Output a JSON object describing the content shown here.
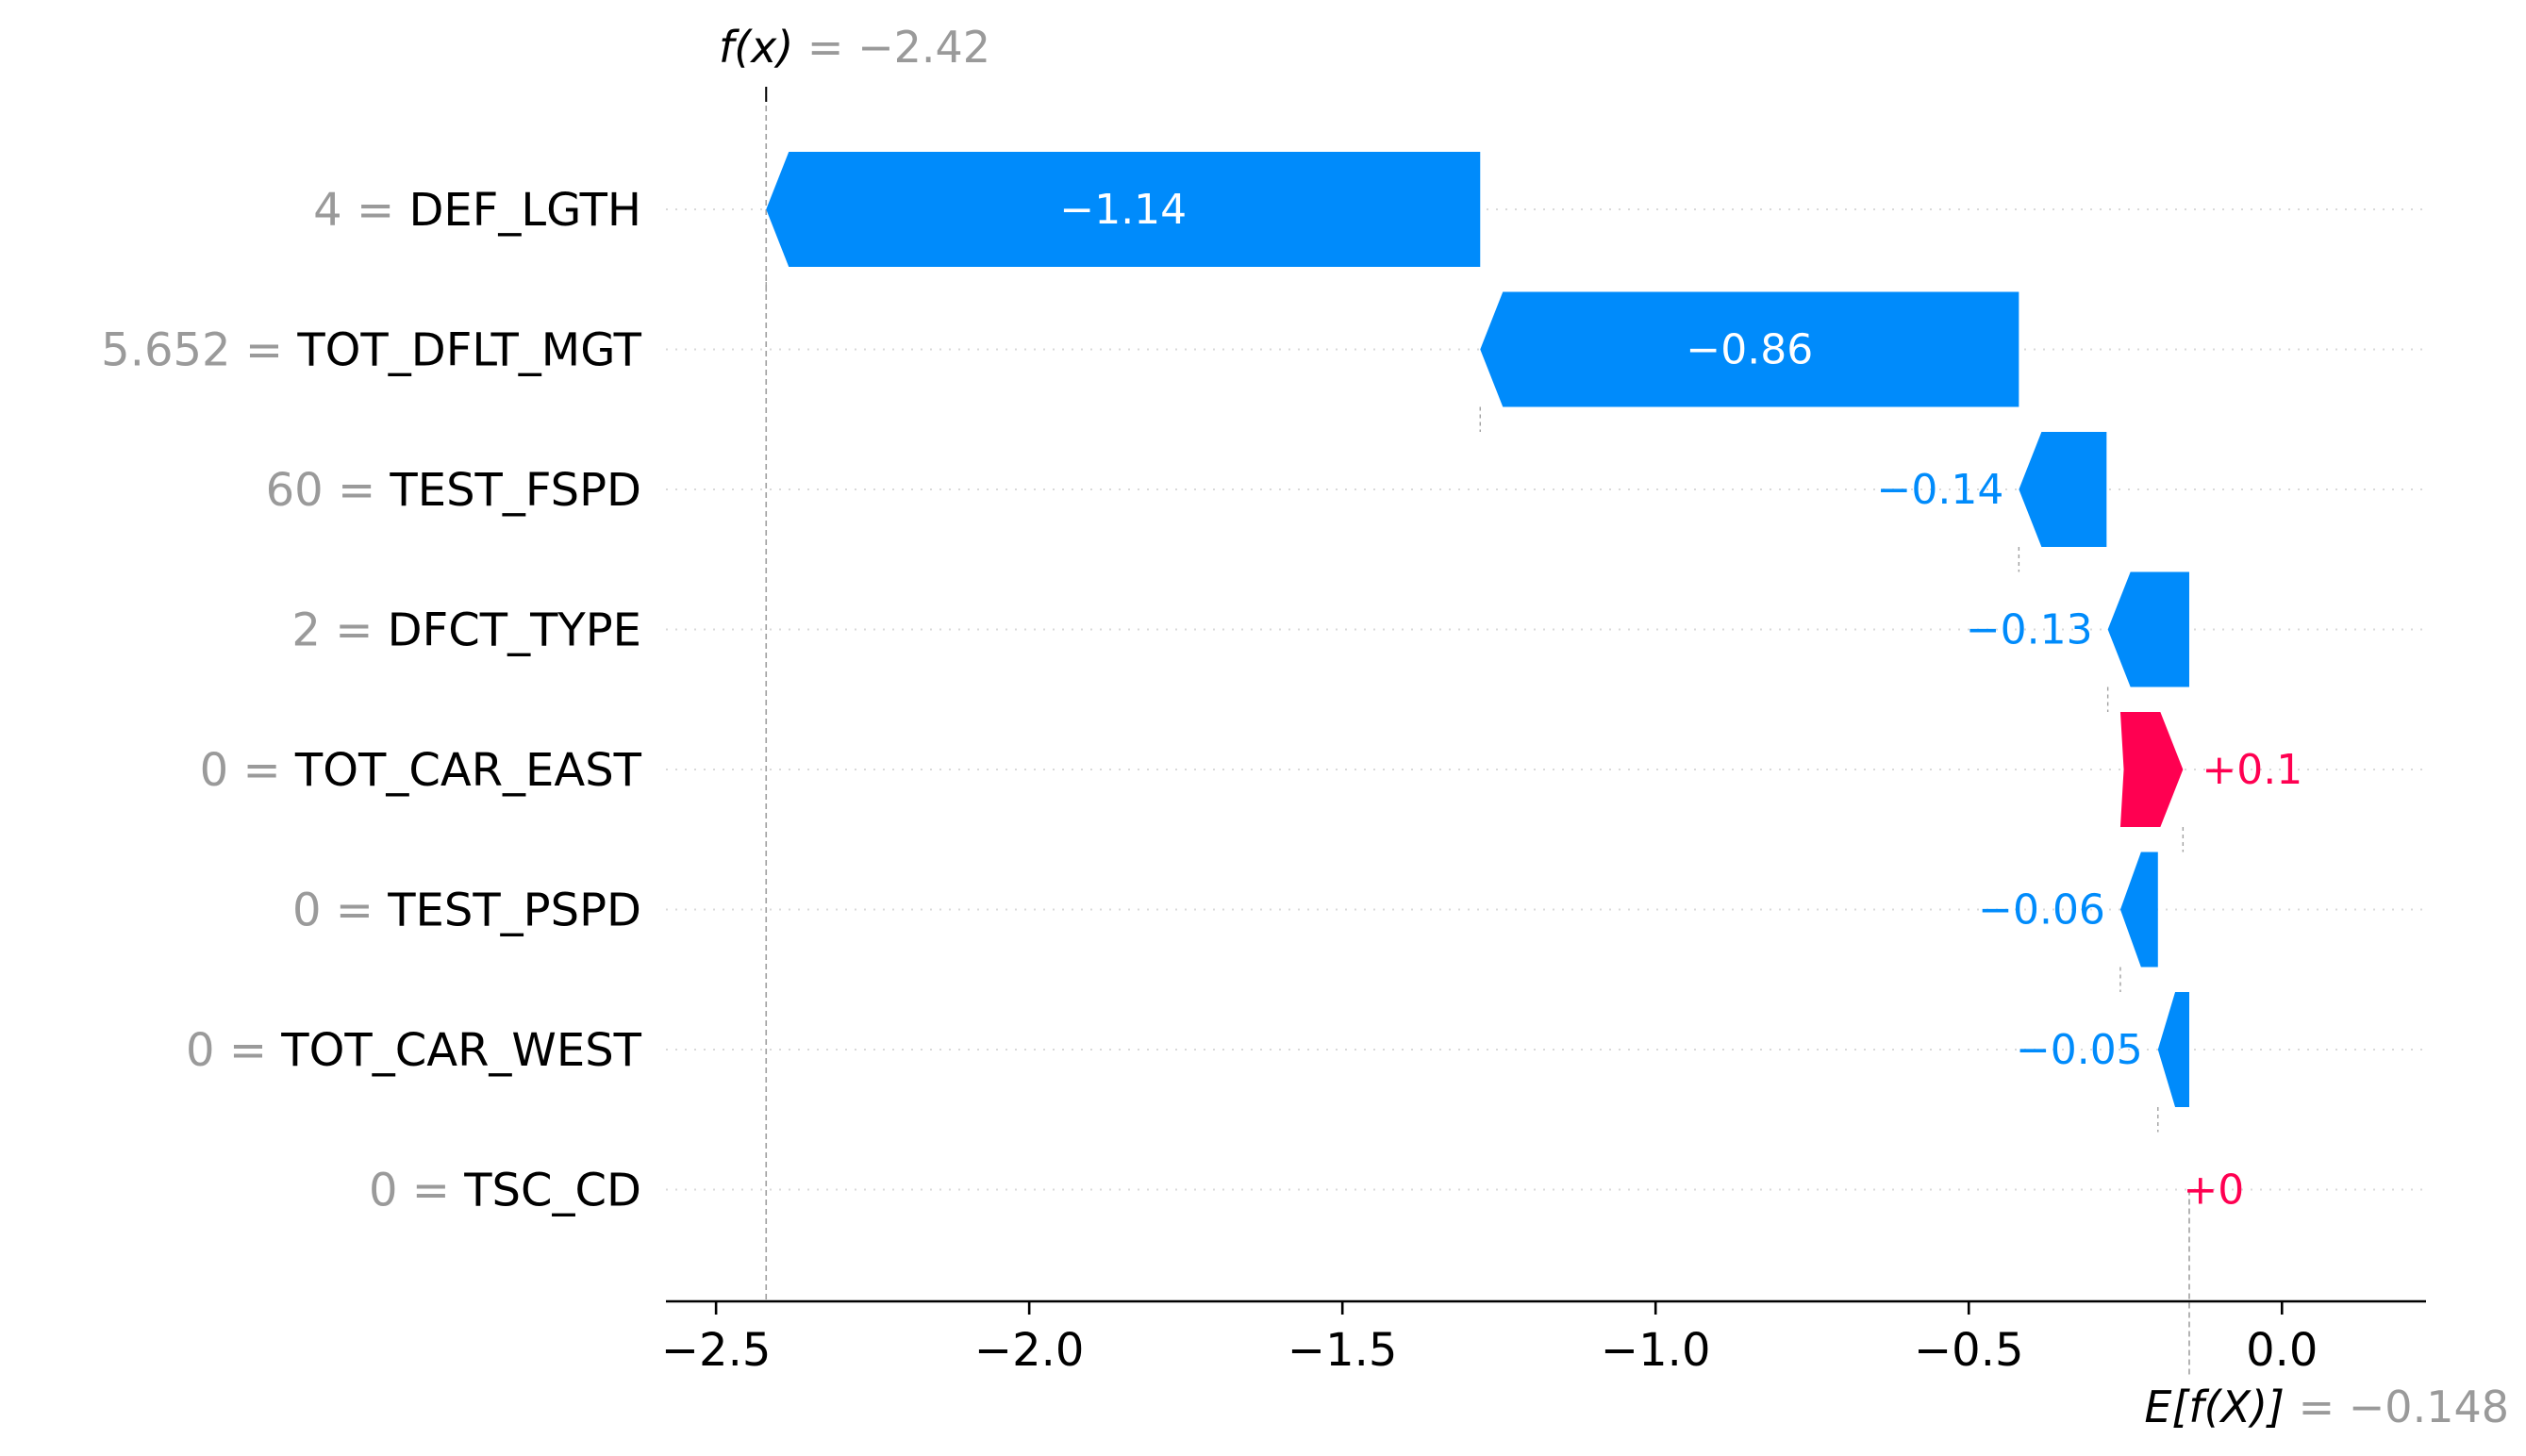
{
  "chart_data": {
    "type": "waterfall",
    "title": "",
    "xlabel": "",
    "ylabel": "",
    "xlim": [
      -2.58,
      0.23
    ],
    "x_ticks": [
      -2.5,
      -2.0,
      -1.5,
      -1.0,
      -0.5,
      0.0
    ],
    "x_tick_labels": [
      "−2.5",
      "−2.0",
      "−1.5",
      "−1.0",
      "−0.5",
      "0.0"
    ],
    "base_value": -0.148,
    "output_value": -2.42,
    "annotations": {
      "fx_label": "f(x)",
      "fx_value": " = −2.42",
      "efx_label": "E[f(X)]",
      "efx_value": " = −0.148"
    },
    "features": [
      {
        "value": "4",
        "name": "DEF_LGTH",
        "contribution": -1.14,
        "label": "−1.14",
        "start": -1.28
      },
      {
        "value": "5.652",
        "name": "TOT_DFLT_MGT",
        "contribution": -0.86,
        "label": "−0.86",
        "start": -0.42
      },
      {
        "value": "60",
        "name": "TEST_FSPD",
        "contribution": -0.14,
        "label": "−0.14",
        "start": -0.28
      },
      {
        "value": "2",
        "name": "DFCT_TYPE",
        "contribution": -0.13,
        "label": "−0.13",
        "start": -0.148
      },
      {
        "value": "0",
        "name": "TOT_CAR_EAST",
        "contribution": 0.1,
        "label": "+0.1",
        "start": -0.258
      },
      {
        "value": "0",
        "name": "TEST_PSPD",
        "contribution": -0.06,
        "label": "−0.06",
        "start": -0.198
      },
      {
        "value": "0",
        "name": "TOT_CAR_WEST",
        "contribution": -0.05,
        "label": "−0.05",
        "start": -0.148
      },
      {
        "value": "0",
        "name": "TSC_CD",
        "contribution": 0.0,
        "label": "+0",
        "start": -0.188
      }
    ],
    "colors": {
      "negative": "#008bfb",
      "positive": "#ff0051",
      "grey_text": "#9a9a9a"
    }
  }
}
